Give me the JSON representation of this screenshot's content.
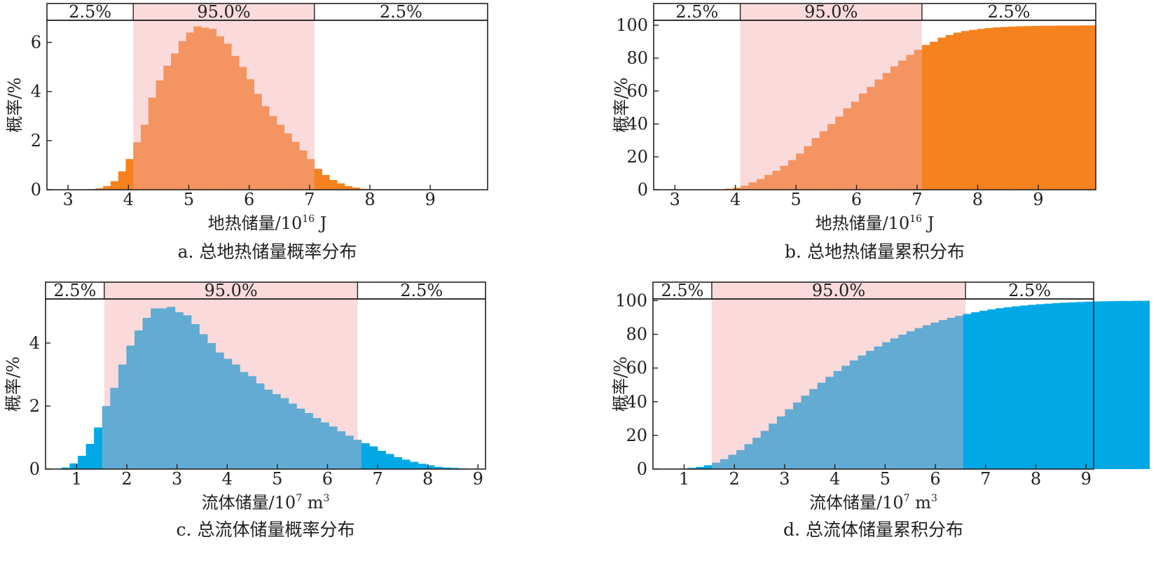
{
  "colors": {
    "band": "#fadadb",
    "orange_tail": "#f5821f",
    "orange_mid": "#f49460",
    "blue_tail": "#00a9e6",
    "blue_mid": "#62abd3"
  },
  "chart_data": [
    {
      "id": "a",
      "type": "bar",
      "caption": "a. 总地热储量概率分布",
      "xlabel": "地热储量/10",
      "xlabel_sup": "16",
      "xlabel_unit": " J",
      "ylabel": "概率/%",
      "xlim": [
        2.65,
        9.95
      ],
      "ylim": [
        0,
        6.9
      ],
      "xticks": [
        3,
        4,
        5,
        6,
        7,
        8,
        9
      ],
      "yticks": [
        0,
        2,
        4,
        6
      ],
      "band": {
        "lo": 4.08,
        "hi": 7.08,
        "labels": [
          "2.5%",
          "95.0%",
          "2.5%"
        ]
      },
      "palette": "orange",
      "bin_start": 3.33,
      "bin_width": 0.125,
      "values": [
        0.02,
        0.06,
        0.15,
        0.35,
        0.75,
        1.25,
        1.93,
        2.65,
        3.75,
        4.45,
        5.05,
        5.55,
        6.05,
        6.4,
        6.65,
        6.6,
        6.55,
        6.25,
        5.95,
        5.45,
        5.0,
        4.5,
        3.9,
        3.4,
        3.0,
        2.65,
        2.3,
        1.95,
        1.6,
        1.25,
        0.85,
        0.6,
        0.4,
        0.26,
        0.15,
        0.09,
        0.04
      ]
    },
    {
      "id": "b",
      "type": "bar",
      "caption": "b. 总地热储量累积分布",
      "xlabel": "地热储量/10",
      "xlabel_sup": "16",
      "xlabel_unit": " J",
      "ylabel": "概率/%",
      "xlim": [
        2.65,
        9.95
      ],
      "ylim": [
        0,
        103
      ],
      "xticks": [
        3,
        4,
        5,
        6,
        7,
        8,
        9
      ],
      "yticks": [
        0,
        20,
        40,
        60,
        80,
        100
      ],
      "band": {
        "lo": 4.08,
        "hi": 7.08,
        "labels": [
          "2.5%",
          "95.0%",
          "2.5%"
        ]
      },
      "palette": "orange",
      "bin_start": 3.7,
      "bin_width": 0.13,
      "values": [
        0.2,
        0.6,
        1.2,
        2.5,
        4.5,
        6.5,
        9.0,
        11.5,
        14.5,
        18.0,
        22.0,
        26.5,
        31.5,
        35.5,
        40.0,
        44.5,
        49.5,
        53.5,
        58.5,
        62.5,
        67.0,
        71.0,
        75.0,
        78.5,
        82.0,
        85.0,
        88.0,
        90.0,
        92.5,
        94.0,
        95.5,
        96.5,
        97.2,
        97.8,
        98.3,
        98.7,
        99.0,
        99.2,
        99.4,
        99.5,
        99.6,
        99.7,
        99.7,
        99.8,
        99.8,
        99.8,
        99.9,
        99.9
      ]
    },
    {
      "id": "c",
      "type": "bar",
      "caption": "c. 总流体储量概率分布",
      "xlabel": "流体储量/10",
      "xlabel_sup": "7",
      "xlabel_unit": " m",
      "xlabel_unit_sup": "3",
      "ylabel": "概率/%",
      "xlim": [
        0.38,
        9.15
      ],
      "ylim": [
        0,
        5.4
      ],
      "xticks": [
        1,
        2,
        3,
        4,
        5,
        6,
        7,
        8,
        9
      ],
      "yticks": [
        0,
        2,
        4
      ],
      "band": {
        "lo": 1.55,
        "hi": 6.6,
        "labels": [
          "2.5%",
          "95.0%",
          "2.5%"
        ]
      },
      "palette": "blue",
      "bin_start": 0.7,
      "bin_width": 0.1615,
      "values": [
        0.05,
        0.18,
        0.42,
        0.8,
        1.32,
        2.0,
        2.58,
        3.32,
        3.92,
        4.4,
        4.8,
        5.1,
        5.1,
        5.15,
        4.98,
        4.88,
        4.6,
        4.28,
        4.0,
        3.7,
        3.5,
        3.32,
        3.08,
        2.95,
        2.72,
        2.52,
        2.38,
        2.25,
        2.08,
        1.92,
        1.78,
        1.62,
        1.48,
        1.35,
        1.2,
        1.06,
        0.93,
        0.82,
        0.72,
        0.58,
        0.48,
        0.38,
        0.3,
        0.23,
        0.17,
        0.12,
        0.07,
        0.05,
        0.04,
        0.02
      ]
    },
    {
      "id": "d",
      "type": "bar",
      "caption": "d. 总流体储量累积分布",
      "xlabel": "流体储量/10",
      "xlabel_sup": "7",
      "xlabel_unit": " m",
      "xlabel_unit_sup": "3",
      "ylabel": "概率/%",
      "xlim": [
        0.38,
        9.15
      ],
      "ylim": [
        0,
        101
      ],
      "xticks": [
        1,
        2,
        3,
        4,
        5,
        6,
        7,
        8,
        9
      ],
      "yticks": [
        0,
        20,
        40,
        60,
        80,
        100
      ],
      "band": {
        "lo": 1.55,
        "hi": 6.6,
        "labels": [
          "2.5%",
          "95.0%",
          "2.5%"
        ]
      },
      "palette": "blue",
      "bin_start": 0.75,
      "bin_width": 0.1612,
      "values": [
        0.1,
        0.3,
        0.7,
        1.3,
        2.3,
        3.8,
        5.9,
        8.5,
        11.3,
        14.8,
        18.6,
        22.7,
        27.0,
        31.3,
        35.5,
        39.6,
        43.6,
        47.5,
        51.3,
        54.8,
        58.2,
        61.4,
        64.5,
        67.4,
        70.2,
        72.8,
        75.3,
        77.6,
        79.8,
        81.8,
        83.7,
        85.4,
        87.0,
        88.5,
        89.8,
        91.0,
        92.1,
        93.1,
        94.0,
        94.8,
        95.5,
        96.1,
        96.6,
        97.1,
        97.5,
        97.9,
        98.2,
        98.5,
        98.8,
        99.0,
        99.2,
        99.4,
        99.5,
        99.6,
        99.7,
        99.8,
        99.8,
        99.9,
        99.9
      ]
    }
  ]
}
